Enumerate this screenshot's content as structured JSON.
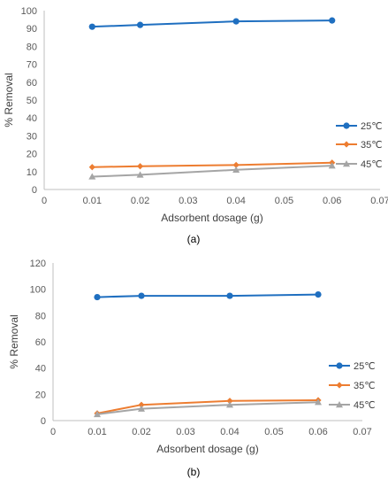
{
  "chart_data": [
    {
      "type": "line",
      "panel_label": "(a)",
      "xlabel": "Adsorbent dosage (g)",
      "ylabel": "% Removal",
      "xlim": [
        0,
        0.07
      ],
      "ylim": [
        0,
        100
      ],
      "x_ticks": [
        "0",
        "0.01",
        "0.02",
        "0.03",
        "0.04",
        "0.05",
        "0.06",
        "0.07"
      ],
      "y_ticks": [
        "0",
        "10",
        "20",
        "30",
        "40",
        "50",
        "60",
        "70",
        "80",
        "90",
        "100"
      ],
      "grid": false,
      "legend_position": "right",
      "series": [
        {
          "name": "25℃",
          "color": "#1f6fc0",
          "marker": "circle",
          "x": [
            0.01,
            0.02,
            0.04,
            0.06
          ],
          "y": [
            91,
            92,
            94,
            94.5
          ]
        },
        {
          "name": "35℃",
          "color": "#ed7d31",
          "marker": "diamond",
          "x": [
            0.01,
            0.02,
            0.04,
            0.06
          ],
          "y": [
            12.5,
            13,
            13.7,
            15
          ]
        },
        {
          "name": "45℃",
          "color": "#a5a5a5",
          "marker": "triangle",
          "x": [
            0.01,
            0.02,
            0.04,
            0.06
          ],
          "y": [
            7.2,
            8.2,
            11,
            13.3
          ]
        }
      ]
    },
    {
      "type": "line",
      "panel_label": "(b)",
      "xlabel": "Adsorbent dosage (g)",
      "ylabel": "% Removal",
      "xlim": [
        0,
        0.07
      ],
      "ylim": [
        0,
        120
      ],
      "x_ticks": [
        "0",
        "0.01",
        "0.02",
        "0.03",
        "0.04",
        "0.05",
        "0.06",
        "0.07"
      ],
      "y_ticks": [
        "0",
        "20",
        "40",
        "60",
        "80",
        "100",
        "120"
      ],
      "grid": false,
      "legend_position": "right",
      "series": [
        {
          "name": "25℃",
          "color": "#1f6fc0",
          "marker": "circle",
          "x": [
            0.01,
            0.02,
            0.04,
            0.06
          ],
          "y": [
            94,
            95,
            95,
            96
          ]
        },
        {
          "name": "35℃",
          "color": "#ed7d31",
          "marker": "diamond",
          "x": [
            0.01,
            0.02,
            0.04,
            0.06
          ],
          "y": [
            5.5,
            12,
            15,
            15.5
          ]
        },
        {
          "name": "45℃",
          "color": "#a5a5a5",
          "marker": "triangle",
          "x": [
            0.01,
            0.02,
            0.04,
            0.06
          ],
          "y": [
            4.8,
            9,
            12,
            14
          ]
        }
      ]
    }
  ]
}
